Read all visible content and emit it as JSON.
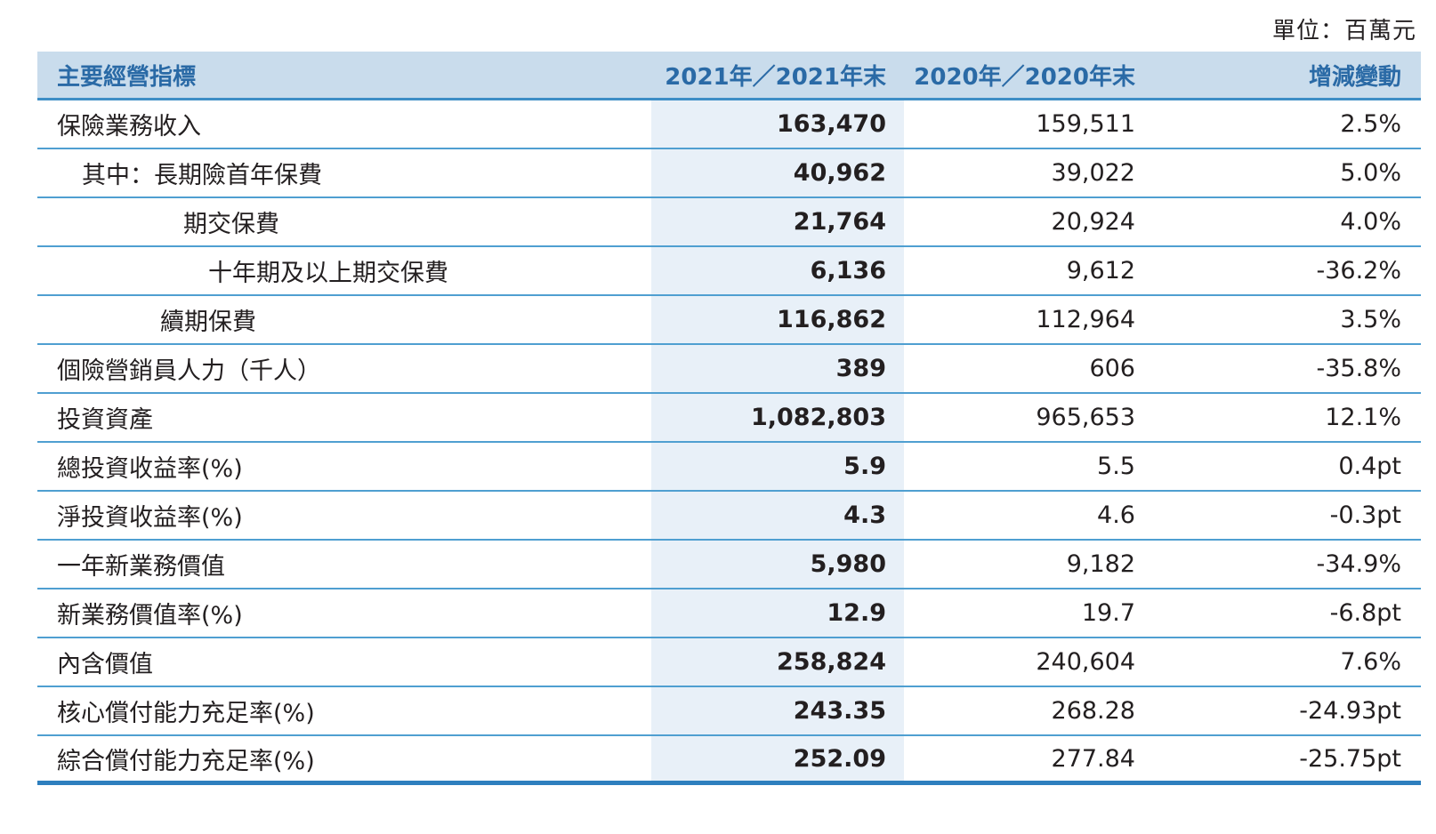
{
  "unit_label": "單位：百萬元",
  "header": {
    "col1": "主要經營指標",
    "col2": "2021年／2021年末",
    "col3": "2020年／2020年末",
    "col4": "增減變動"
  },
  "rows": [
    {
      "label": "保險業務收入",
      "v2021": "163,470",
      "v2020": "159,511",
      "change": "2.5%"
    },
    {
      "label": "其中：長期險首年保費",
      "v2021": "40,962",
      "v2020": "39,022",
      "change": "5.0%"
    },
    {
      "label": "期交保費",
      "v2021": "21,764",
      "v2020": "20,924",
      "change": "4.0%"
    },
    {
      "label": "十年期及以上期交保費",
      "v2021": "6,136",
      "v2020": "9,612",
      "change": "-36.2%"
    },
    {
      "label": "續期保費",
      "v2021": "116,862",
      "v2020": "112,964",
      "change": "3.5%"
    },
    {
      "label": "個險營銷員人力（千人）",
      "v2021": "389",
      "v2020": "606",
      "change": "-35.8%"
    },
    {
      "label": "投資資產",
      "v2021": "1,082,803",
      "v2020": "965,653",
      "change": "12.1%"
    },
    {
      "label": "總投資收益率(%)",
      "v2021": "5.9",
      "v2020": "5.5",
      "change": "0.4pt"
    },
    {
      "label": "淨投資收益率(%)",
      "v2021": "4.3",
      "v2020": "4.6",
      "change": "-0.3pt"
    },
    {
      "label": "一年新業務價值",
      "v2021": "5,980",
      "v2020": "9,182",
      "change": "-34.9%"
    },
    {
      "label": "新業務價值率(%)",
      "v2021": "12.9",
      "v2020": "19.7",
      "change": "-6.8pt"
    },
    {
      "label": "內含價值",
      "v2021": "258,824",
      "v2020": "240,604",
      "change": "7.6%"
    },
    {
      "label": "核心償付能力充足率(%)",
      "v2021": "243.35",
      "v2020": "268.28",
      "change": "-24.93pt"
    },
    {
      "label": "綜合償付能力充足率(%)",
      "v2021": "252.09",
      "v2020": "277.84",
      "change": "-25.75pt"
    }
  ]
}
